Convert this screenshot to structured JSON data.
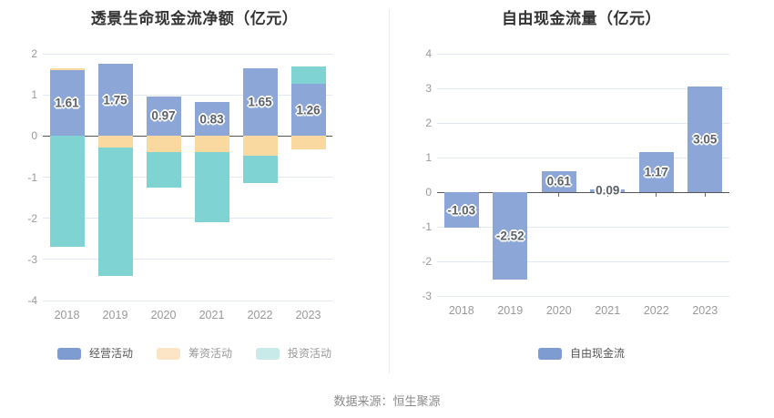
{
  "page": {
    "footer_source": "数据来源：恒生聚源"
  },
  "chart_data": [
    {
      "id": "cashflow",
      "type": "bar",
      "stacked": true,
      "title": "透景生命现金流净额（亿元）",
      "categories": [
        "2018",
        "2019",
        "2020",
        "2021",
        "2022",
        "2023"
      ],
      "series": [
        {
          "name": "经营活动",
          "color": "#8CA6D8",
          "legend_color": "#7F9CD2",
          "labeled": true,
          "values": [
            1.61,
            1.75,
            0.97,
            0.83,
            1.65,
            1.26
          ]
        },
        {
          "name": "筹资活动",
          "color": "#FAD9A1",
          "legend_color": "#FBE5C6",
          "labeled": false,
          "values": [
            0.03,
            -0.28,
            -0.4,
            -0.4,
            -0.47,
            -0.33
          ]
        },
        {
          "name": "投资活动",
          "color": "#7FD4D3",
          "legend_color": "#C8EAE8",
          "labeled": false,
          "values": [
            -2.7,
            -3.12,
            -0.85,
            -1.7,
            -0.68,
            0.44
          ]
        }
      ],
      "ylim": [
        -4,
        2
      ],
      "yticks": [
        2,
        1,
        0,
        -1,
        -2,
        -3,
        -4
      ],
      "grid": true,
      "legend_position": "bottom"
    },
    {
      "id": "fcf",
      "type": "bar",
      "stacked": false,
      "title": "自由现金流量（亿元）",
      "categories": [
        "2018",
        "2019",
        "2020",
        "2021",
        "2022",
        "2023"
      ],
      "series": [
        {
          "name": "自由现金流",
          "color": "#8CA6D8",
          "legend_color": "#7F9CD2",
          "labeled": true,
          "values": [
            -1.03,
            -2.52,
            0.61,
            0.09,
            1.17,
            3.05
          ]
        }
      ],
      "ylim": [
        -3,
        4
      ],
      "yticks": [
        4,
        3,
        2,
        1,
        0,
        -1,
        -2,
        -3
      ],
      "grid": true,
      "legend_position": "bottom"
    }
  ]
}
